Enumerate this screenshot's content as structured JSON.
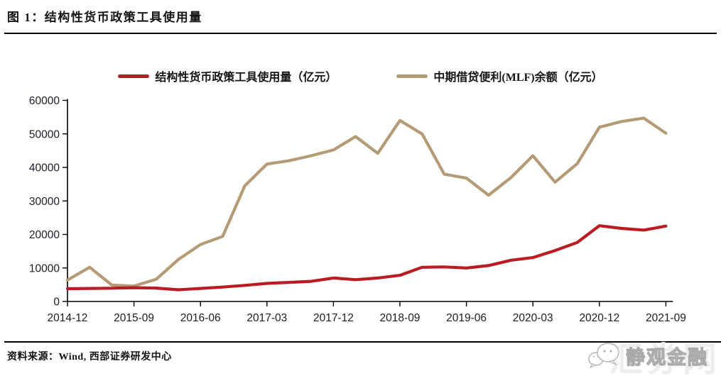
{
  "figure": {
    "title": "图 1：结构性货币政策工具使用量",
    "source_label": "资料来源：Wind, 西部证券研发中心"
  },
  "watermark": {
    "icon": "chat-bubbles-icon",
    "brand": "静观金融",
    "background_text": "汇券网"
  },
  "colors": {
    "series_structural": "#bb1b23",
    "series_mlf": "#b49b75",
    "axis": "#000000",
    "text": "#1c1c24"
  },
  "chart_data": {
    "type": "line",
    "title": "结构性货币政策工具使用量",
    "xlabel": "",
    "ylabel": "",
    "ylim": [
      0,
      60000
    ],
    "y_ticks": [
      0,
      10000,
      20000,
      30000,
      40000,
      50000,
      60000
    ],
    "grid": false,
    "legend_position": "top",
    "categories": [
      "2014-12",
      "2015-03",
      "2015-06",
      "2015-09",
      "2015-12",
      "2016-03",
      "2016-06",
      "2016-09",
      "2016-12",
      "2017-03",
      "2017-06",
      "2017-09",
      "2017-12",
      "2018-03",
      "2018-06",
      "2018-09",
      "2018-12",
      "2019-03",
      "2019-06",
      "2019-09",
      "2019-12",
      "2020-03",
      "2020-06",
      "2020-09",
      "2020-12",
      "2021-03",
      "2021-06",
      "2021-09"
    ],
    "x_tick_labels": [
      "2014-12",
      "2015-09",
      "2016-06",
      "2017-03",
      "2017-12",
      "2018-09",
      "2019-06",
      "2020-03",
      "2020-12",
      "2021-09"
    ],
    "x_tick_indices": [
      0,
      3,
      6,
      9,
      12,
      15,
      18,
      21,
      24,
      27
    ],
    "series": [
      {
        "name": "结构性货币政策工具使用量（亿元）",
        "color": "#bb1b23",
        "values": [
          3800,
          3900,
          3950,
          4100,
          4000,
          3500,
          3900,
          4300,
          4800,
          5400,
          5700,
          6000,
          7000,
          6500,
          7000,
          7800,
          10200,
          10300,
          10000,
          10700,
          12300,
          13100,
          15200,
          17600,
          22600,
          21800,
          21300,
          22500
        ]
      },
      {
        "name": "中期借贷便利(MLF)余额（亿元）",
        "color": "#b49b75",
        "values": [
          6400,
          10200,
          4900,
          4600,
          6600,
          12500,
          17000,
          19400,
          34500,
          41000,
          42000,
          43500,
          45200,
          49200,
          44200,
          54000,
          50000,
          38000,
          36800,
          31700,
          36900,
          43500,
          35600,
          41100,
          52000,
          53700,
          54700,
          50200
        ]
      }
    ]
  }
}
